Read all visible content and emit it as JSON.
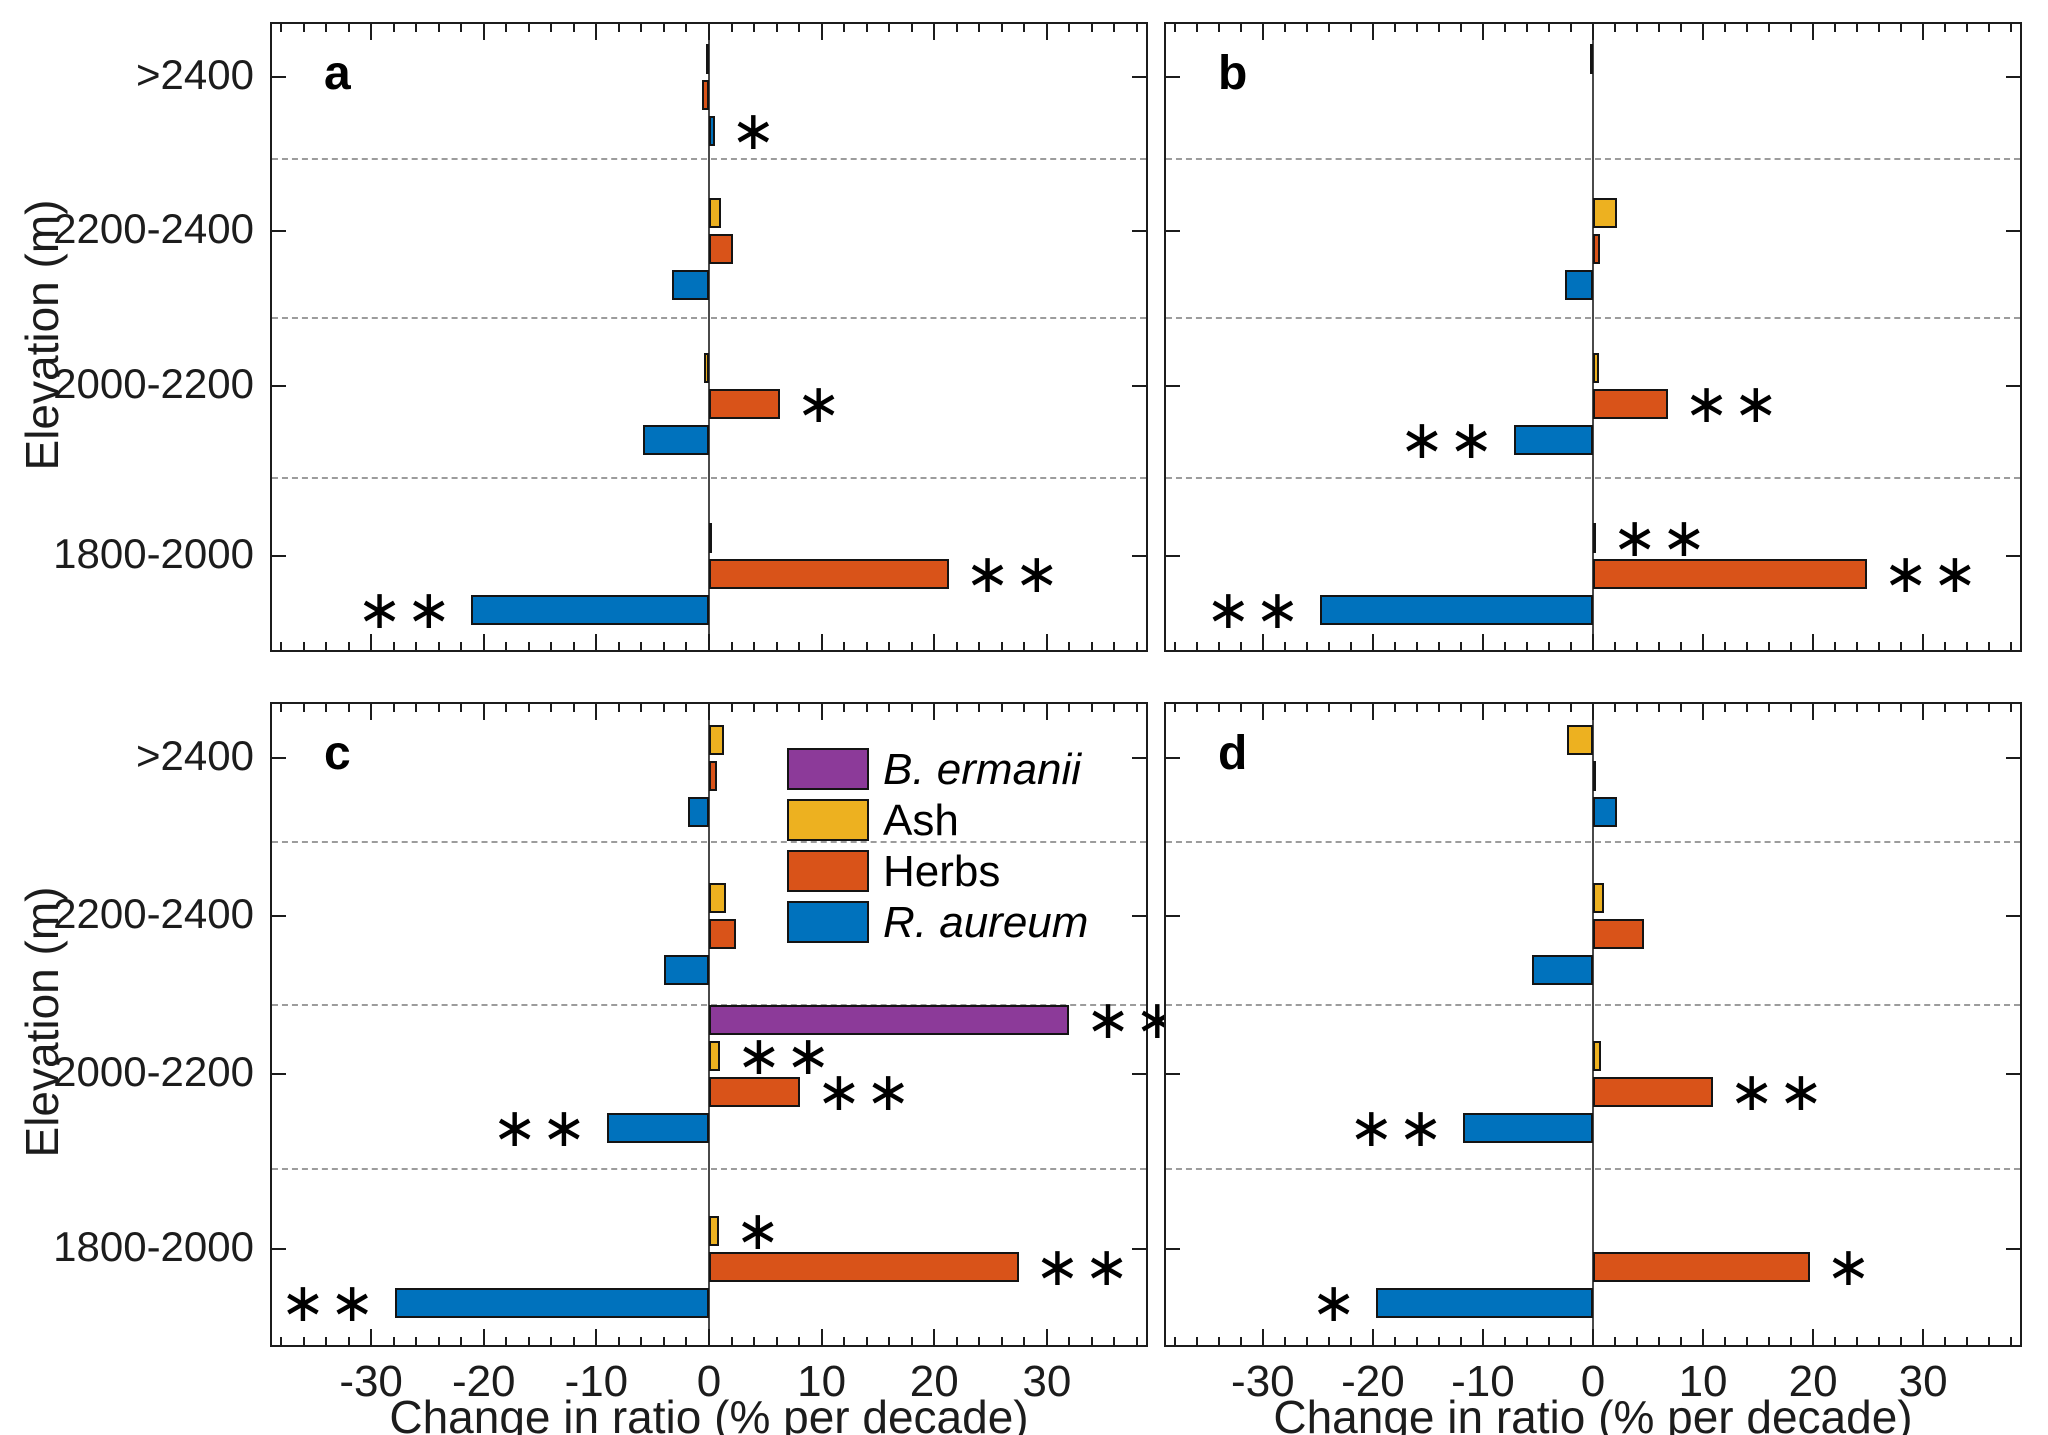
{
  "figure": {
    "background": "#ffffff"
  },
  "colors": {
    "axis": "#1c1c1c",
    "zero_line": "#4a4a4a",
    "separator": "#9c9c9c",
    "significance": "#000000"
  },
  "species": [
    {
      "key": "ermanii",
      "label": "B. ermanii",
      "color": "#8C3A99",
      "italic": true
    },
    {
      "key": "ash",
      "label": "Ash",
      "color": "#EDB120",
      "italic": false
    },
    {
      "key": "herbs",
      "label": "Herbs",
      "color": "#D95319",
      "italic": false
    },
    {
      "key": "aureum",
      "label": "R. aureum",
      "color": "#0072BD",
      "italic": true
    }
  ],
  "sig_glyph": "∗",
  "chart_data": {
    "type": "bar",
    "orientation": "horizontal",
    "title": "",
    "xlabel": "Change in ratio (% per decade)",
    "ylabel": "Elevation (m)",
    "x_ticks": [
      -30,
      -20,
      -10,
      0,
      10,
      20,
      30
    ],
    "x_minor_step": 2,
    "x_range": [
      -38.8,
      38.8
    ],
    "grid": "dashed horizontal separators between elevation groups",
    "legend_position": "inside panel c, upper right of center",
    "categories": [
      ">2400",
      "2200-2400",
      "2000-2200",
      "1800-2000"
    ],
    "series_order": [
      "ermanii",
      "ash",
      "herbs",
      "aureum"
    ],
    "panels": [
      {
        "label": "a",
        "groups": [
          {
            "category": ">2400",
            "bars": [
              {
                "species": "ash",
                "value": -0.3,
                "sig": ""
              },
              {
                "species": "herbs",
                "value": -0.6,
                "sig": ""
              },
              {
                "species": "aureum",
                "value": 0.5,
                "sig": "*"
              }
            ]
          },
          {
            "category": "2200-2400",
            "bars": [
              {
                "species": "ash",
                "value": 1.1,
                "sig": ""
              },
              {
                "species": "herbs",
                "value": 2.1,
                "sig": ""
              },
              {
                "species": "aureum",
                "value": -3.3,
                "sig": ""
              }
            ]
          },
          {
            "category": "2000-2200",
            "bars": [
              {
                "species": "ash",
                "value": -0.4,
                "sig": ""
              },
              {
                "species": "herbs",
                "value": 6.3,
                "sig": "*"
              },
              {
                "species": "aureum",
                "value": -5.9,
                "sig": ""
              }
            ]
          },
          {
            "category": "1800-2000",
            "bars": [
              {
                "species": "ash",
                "value": 0.1,
                "sig": ""
              },
              {
                "species": "herbs",
                "value": 21.3,
                "sig": "**"
              },
              {
                "species": "aureum",
                "value": -21.1,
                "sig": "**"
              }
            ]
          }
        ]
      },
      {
        "label": "b",
        "groups": [
          {
            "category": ">2400",
            "bars": [
              {
                "species": "ash",
                "value": -0.15,
                "sig": ""
              }
            ]
          },
          {
            "category": "2200-2400",
            "bars": [
              {
                "species": "ash",
                "value": 2.2,
                "sig": ""
              },
              {
                "species": "herbs",
                "value": 0.6,
                "sig": ""
              },
              {
                "species": "aureum",
                "value": -2.5,
                "sig": ""
              }
            ]
          },
          {
            "category": "2000-2200",
            "bars": [
              {
                "species": "ash",
                "value": 0.5,
                "sig": ""
              },
              {
                "species": "herbs",
                "value": 6.8,
                "sig": "**"
              },
              {
                "species": "aureum",
                "value": -7.2,
                "sig": "**"
              }
            ]
          },
          {
            "category": "1800-2000",
            "bars": [
              {
                "species": "ash",
                "value": 0.2,
                "sig": "**"
              },
              {
                "species": "herbs",
                "value": 24.9,
                "sig": "**"
              },
              {
                "species": "aureum",
                "value": -24.8,
                "sig": "**"
              }
            ]
          }
        ]
      },
      {
        "label": "c",
        "groups": [
          {
            "category": ">2400",
            "bars": [
              {
                "species": "ash",
                "value": 1.3,
                "sig": ""
              },
              {
                "species": "herbs",
                "value": 0.7,
                "sig": ""
              },
              {
                "species": "aureum",
                "value": -1.9,
                "sig": ""
              }
            ]
          },
          {
            "category": "2200-2400",
            "bars": [
              {
                "species": "ash",
                "value": 1.5,
                "sig": ""
              },
              {
                "species": "herbs",
                "value": 2.4,
                "sig": ""
              },
              {
                "species": "aureum",
                "value": -4.0,
                "sig": ""
              }
            ]
          },
          {
            "category": "2000-2200",
            "bars": [
              {
                "species": "ermanii",
                "value": 32.0,
                "sig": "**"
              },
              {
                "species": "ash",
                "value": 1.0,
                "sig": "**"
              },
              {
                "species": "herbs",
                "value": 8.1,
                "sig": "**"
              },
              {
                "species": "aureum",
                "value": -9.1,
                "sig": "**"
              }
            ]
          },
          {
            "category": "1800-2000",
            "bars": [
              {
                "species": "ash",
                "value": 0.9,
                "sig": "*"
              },
              {
                "species": "herbs",
                "value": 27.5,
                "sig": "**"
              },
              {
                "species": "aureum",
                "value": -27.9,
                "sig": "**"
              }
            ]
          }
        ]
      },
      {
        "label": "d",
        "groups": [
          {
            "category": ">2400",
            "bars": [
              {
                "species": "ash",
                "value": -2.4,
                "sig": ""
              },
              {
                "species": "herbs",
                "value": 0.2,
                "sig": ""
              },
              {
                "species": "aureum",
                "value": 2.2,
                "sig": ""
              }
            ]
          },
          {
            "category": "2200-2400",
            "bars": [
              {
                "species": "ash",
                "value": 1.0,
                "sig": ""
              },
              {
                "species": "herbs",
                "value": 4.6,
                "sig": ""
              },
              {
                "species": "aureum",
                "value": -5.5,
                "sig": ""
              }
            ]
          },
          {
            "category": "2000-2200",
            "bars": [
              {
                "species": "ash",
                "value": 0.7,
                "sig": ""
              },
              {
                "species": "herbs",
                "value": 10.9,
                "sig": "**"
              },
              {
                "species": "aureum",
                "value": -11.8,
                "sig": "**"
              }
            ]
          },
          {
            "category": "1800-2000",
            "bars": [
              {
                "species": "herbs",
                "value": 19.7,
                "sig": "*"
              },
              {
                "species": "aureum",
                "value": -19.7,
                "sig": "*"
              }
            ]
          }
        ]
      }
    ]
  }
}
